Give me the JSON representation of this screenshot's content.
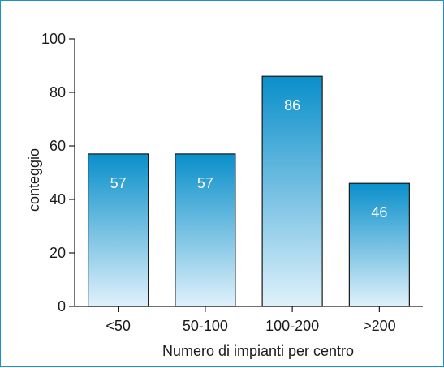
{
  "chart_data": {
    "type": "bar",
    "categories": [
      "<50",
      "50-100",
      "100-200",
      ">200"
    ],
    "values": [
      57,
      57,
      86,
      46
    ],
    "data_labels": [
      "57",
      "57",
      "86",
      "46"
    ],
    "xlabel": "Numero di impianti per centro",
    "ylabel": "conteggio",
    "ylim": [
      0,
      100
    ],
    "yticks": [
      0,
      20,
      40,
      60,
      80,
      100
    ],
    "grid": false,
    "bar_gradient": {
      "top": "#0a8fca",
      "bottom": "#e0f1fb"
    },
    "frame_color": "#1f8fc8"
  }
}
